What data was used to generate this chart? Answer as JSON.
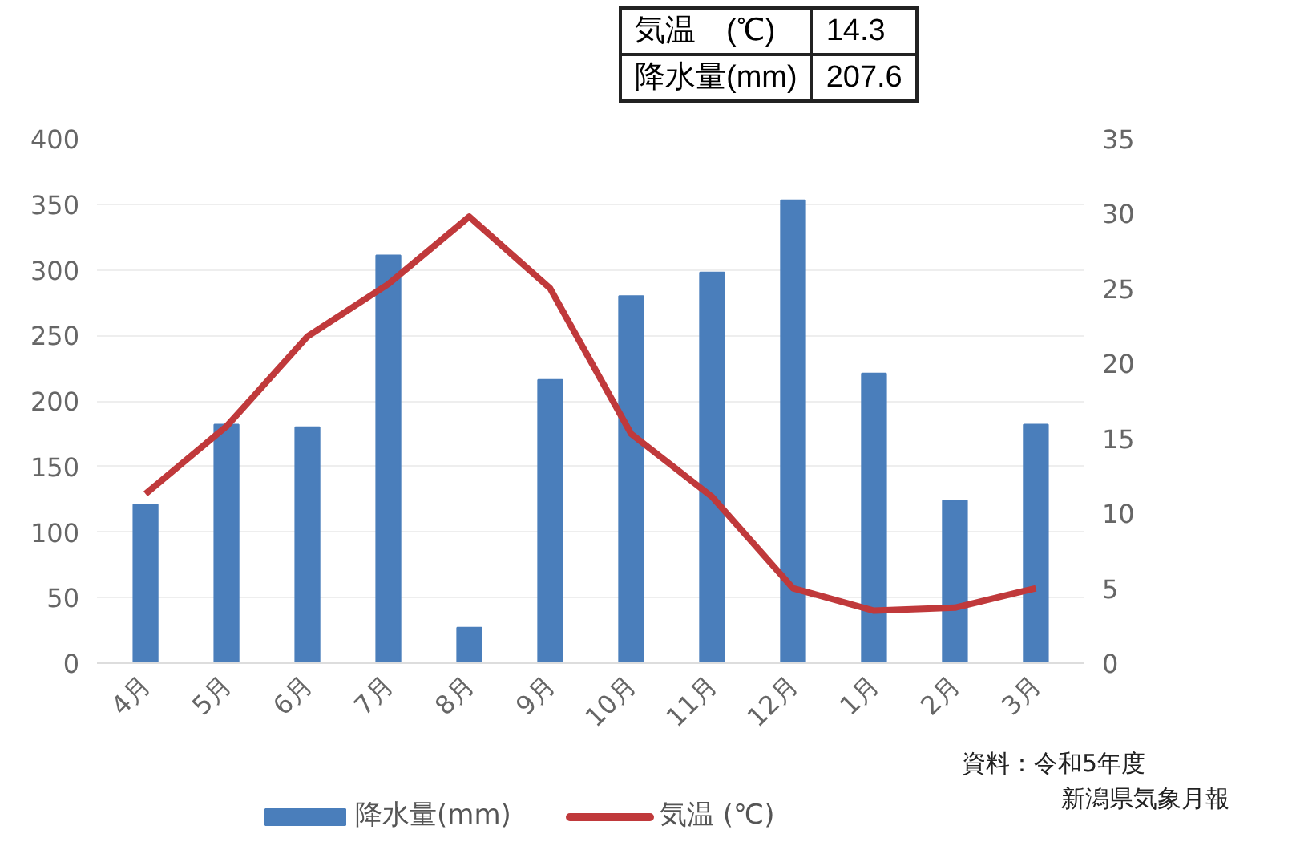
{
  "chart_data": {
    "type": "bar",
    "categories": [
      "4月",
      "5月",
      "6月",
      "7月",
      "8月",
      "9月",
      "10月",
      "11月",
      "12月",
      "1月",
      "2月",
      "3月"
    ],
    "series": [
      {
        "name": "降水量(mm)",
        "color": "#4a7ebb",
        "values": [
          121,
          182,
          180,
          311,
          27,
          216,
          280,
          298,
          353,
          221,
          124,
          182
        ]
      },
      {
        "name": "気温 (℃)",
        "type": "line",
        "axis": "y2",
        "color": "#c0393b",
        "values": [
          11.3,
          15.8,
          21.8,
          25.3,
          29.8,
          25.0,
          15.3,
          11.1,
          5.0,
          3.5,
          3.7,
          5.0
        ]
      }
    ],
    "ylim": [
      0,
      400
    ],
    "yticks": [
      0,
      50,
      100,
      150,
      200,
      250,
      300,
      350,
      400
    ],
    "y2lim": [
      0,
      35
    ],
    "y2ticks": [
      0,
      5,
      10,
      15,
      20,
      25,
      30,
      35
    ],
    "grid": "y",
    "legend": "bottom",
    "annotations": [
      "気温　(℃)",
      "14.3",
      "降水量(mm)",
      "207.6",
      "資料：令和5年度",
      "新潟県気象月報"
    ]
  }
}
